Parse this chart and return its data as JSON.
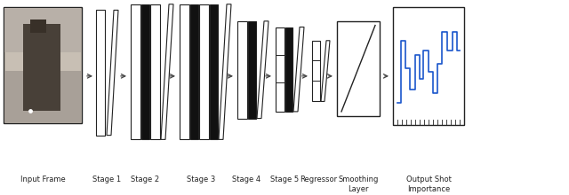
{
  "bg_color": "#ffffff",
  "fig_width": 6.4,
  "fig_height": 2.2,
  "dpi": 100,
  "labels": {
    "input_frame": "Input Frame",
    "stage1": "Stage 1",
    "stage2": "Stage 2",
    "stage3": "Stage 3",
    "stage4": "Stage 4",
    "stage5": "Stage 5",
    "regressor": "Regressor",
    "smoothing": "Smoothing\nLayer",
    "output": "Output Shot\nImportance"
  },
  "font_size": 6.0,
  "arrow_color": "#444444",
  "box_color": "#222222",
  "white_fill": "#ffffff",
  "black_fill": "#111111",
  "blue_line": "#1a56cc",
  "skew": 0.006
}
